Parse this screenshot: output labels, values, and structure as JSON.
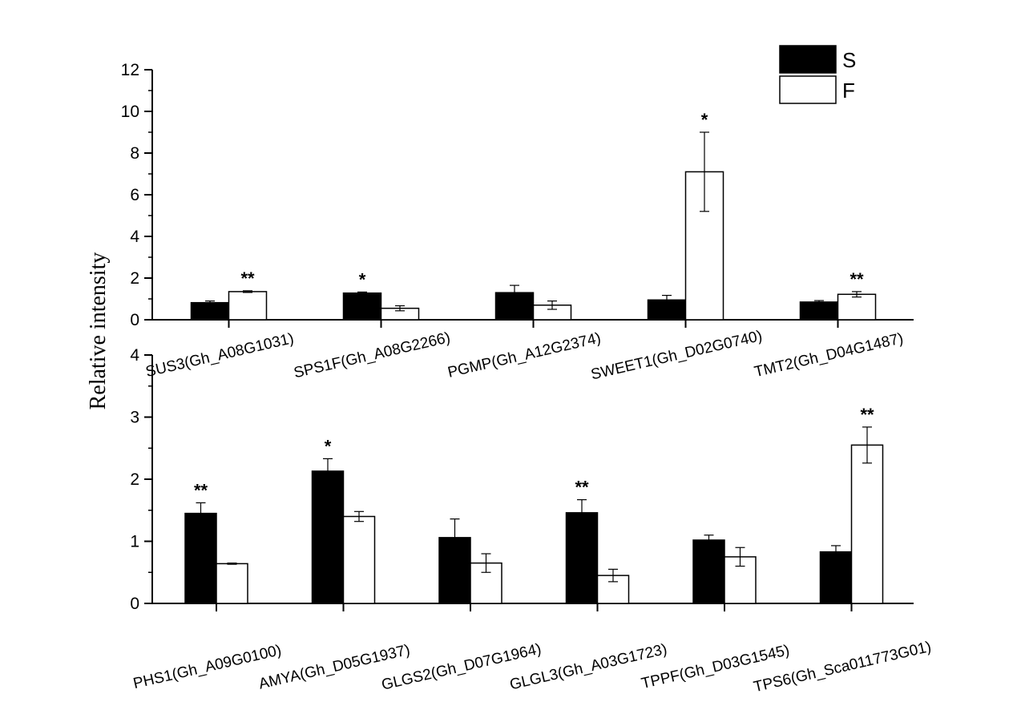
{
  "chart_data": [
    {
      "type": "bar",
      "panel": "top",
      "ylabel": "Relative intensity",
      "ylim": [
        0,
        12
      ],
      "yticks": [
        0,
        2,
        4,
        6,
        8,
        10,
        12
      ],
      "categories": [
        "SUS3(Gh_A08G1031)",
        "SPS1F(Gh_A08G2266)",
        "PGMP(Gh_A12G2374)",
        "SWEET1(Gh_D02G0740)",
        "TMT2(Gh_D04G1487)"
      ],
      "series": [
        {
          "name": "S",
          "values": [
            0.82,
            1.28,
            1.3,
            0.95,
            0.85
          ],
          "errors": [
            0.08,
            0.05,
            0.35,
            0.22,
            0.07
          ],
          "color": "#000000"
        },
        {
          "name": "F",
          "values": [
            1.35,
            0.55,
            0.7,
            7.1,
            1.22
          ],
          "errors": [
            0.04,
            0.12,
            0.2,
            1.9,
            0.13
          ],
          "color": "#ffffff"
        }
      ],
      "annotations": [
        {
          "category": 0,
          "series": "F",
          "text": "**"
        },
        {
          "category": 1,
          "series": "S",
          "text": "*"
        },
        {
          "category": 3,
          "series": "F",
          "text": "*"
        },
        {
          "category": 4,
          "series": "F",
          "text": "**"
        }
      ],
      "legend": {
        "position": "top-right",
        "entries": [
          "S",
          "F"
        ]
      }
    },
    {
      "type": "bar",
      "panel": "bottom",
      "ylim": [
        0,
        4
      ],
      "yticks": [
        0,
        1,
        2,
        3,
        4
      ],
      "categories": [
        "PHS1(Gh_A09G0100)",
        "AMYA(Gh_D05G1937)",
        "GLGS2(Gh_D07G1964)",
        "GLGL3(Gh_A03G1723)",
        "TPPF(Gh_D03G1545)",
        "TPS6(Gh_Sca011773G01)"
      ],
      "series": [
        {
          "name": "S",
          "values": [
            1.45,
            2.13,
            1.06,
            1.46,
            1.02,
            0.83
          ],
          "errors": [
            0.17,
            0.2,
            0.3,
            0.21,
            0.08,
            0.1
          ],
          "color": "#000000"
        },
        {
          "name": "F",
          "values": [
            0.64,
            1.4,
            0.65,
            0.45,
            0.75,
            2.55
          ],
          "errors": [
            0.01,
            0.08,
            0.15,
            0.1,
            0.15,
            0.29
          ],
          "color": "#ffffff"
        }
      ],
      "annotations": [
        {
          "category": 0,
          "series": "S",
          "text": "**"
        },
        {
          "category": 1,
          "series": "S",
          "text": "*"
        },
        {
          "category": 3,
          "series": "S",
          "text": "**"
        },
        {
          "category": 5,
          "series": "F",
          "text": "**"
        }
      ]
    }
  ]
}
